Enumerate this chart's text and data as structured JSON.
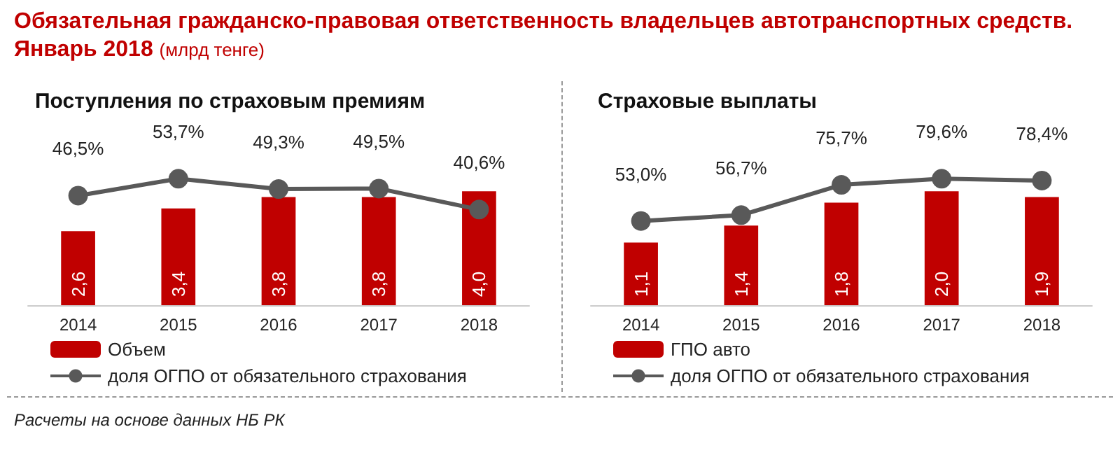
{
  "chart_data": [
    {
      "type": "other",
      "title": "Обязательная гражданско-правовая ответственность владельцев автотранспортных средств. Январь 2018",
      "subtitle": "(млрд тенге)",
      "annotations": [
        "Расчеты на основе данных НБ РК"
      ]
    },
    {
      "type": "bar",
      "title": "Поступления по страховым премиям",
      "categories": [
        "2014",
        "2015",
        "2016",
        "2017",
        "2018"
      ],
      "legend": "bottom left",
      "series": [
        {
          "name": "Объем",
          "color": "#c00000",
          "values": [
            2.6,
            3.4,
            3.8,
            3.8,
            4.0
          ],
          "value_labels": [
            "2,6",
            "3,4",
            "3,8",
            "3,8",
            "4,0"
          ]
        },
        {
          "name": "доля ОГПО от обязательного страхования",
          "type": "line",
          "axis": "y2",
          "color": "#595959",
          "marker": "circle",
          "values": [
            46.5,
            53.7,
            49.3,
            49.5,
            40.6
          ],
          "value_labels": [
            "46,5%",
            "53,7%",
            "49,3%",
            "49,5%",
            "40,6%"
          ]
        }
      ]
    },
    {
      "type": "bar",
      "title": "Страховые выплаты",
      "categories": [
        "2014",
        "2015",
        "2016",
        "2017",
        "2018"
      ],
      "legend": "bottom left",
      "series": [
        {
          "name": "ГПО авто",
          "color": "#c00000",
          "values": [
            1.1,
            1.4,
            1.8,
            2.0,
            1.9
          ],
          "value_labels": [
            "1,1",
            "1,4",
            "1,8",
            "2,0",
            "1,9"
          ]
        },
        {
          "name": "доля ОГПО от обязательного страхования",
          "type": "line",
          "axis": "y2",
          "color": "#595959",
          "marker": "circle",
          "values": [
            53.0,
            56.7,
            75.7,
            79.6,
            78.4
          ],
          "value_labels": [
            "53,0%",
            "56,7%",
            "75,7%",
            "79,6%",
            "78,4%"
          ]
        }
      ]
    }
  ]
}
